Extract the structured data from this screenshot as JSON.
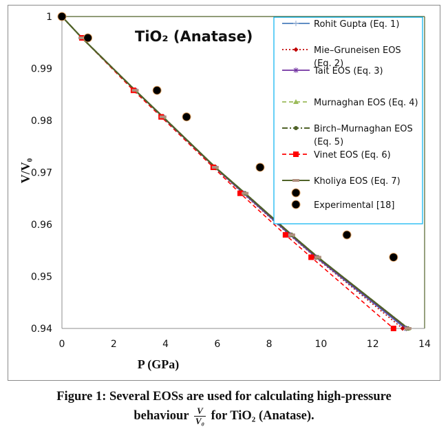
{
  "chart_data": {
    "type": "line",
    "title": "TiO₂ (Anatase)",
    "xlabel": "P (GPa)",
    "ylabel": "V/V₀",
    "xlim": [
      0,
      14
    ],
    "ylim": [
      0.94,
      1.0
    ],
    "xticks": [
      "0",
      "2",
      "4",
      "6",
      "8",
      "10",
      "12",
      "14"
    ],
    "xtick_values": [
      0,
      2,
      4,
      6,
      8,
      10,
      12,
      14
    ],
    "yticks": [
      "0.94",
      "0.95",
      "0.96",
      "0.97",
      "0.98",
      "0.99",
      "1"
    ],
    "ytick_values": [
      0.94,
      0.95,
      0.96,
      0.97,
      0.98,
      0.99,
      1.0
    ],
    "grid": false,
    "legend_position": "top-right",
    "y_common": [
      1.0,
      0.9959,
      0.9858,
      0.9807,
      0.971,
      0.966,
      0.958,
      0.9537,
      0.94
    ],
    "series": [
      {
        "name": "Rohit Gupta (Eq. 1)",
        "color": "#4a7ebb",
        "dash": "solid",
        "marker": "plus",
        "x": [
          0,
          0.77,
          2.82,
          3.88,
          5.9,
          7.0,
          8.8,
          9.8,
          13.25
        ],
        "y": [
          1.0,
          0.9959,
          0.9858,
          0.9807,
          0.971,
          0.966,
          0.958,
          0.9537,
          0.94
        ]
      },
      {
        "name": "Mie–Gruneisen EOS (Eq. 2)",
        "color": "#c00000",
        "dash": "dot",
        "marker": "diamond",
        "x": [
          0,
          0.77,
          2.82,
          3.88,
          5.88,
          6.98,
          8.78,
          9.78,
          13.15
        ],
        "y": [
          1.0,
          0.9959,
          0.9858,
          0.9807,
          0.971,
          0.966,
          0.958,
          0.9537,
          0.94
        ]
      },
      {
        "name": "Tait EOS (Eq. 3)",
        "color": "#7030a0",
        "dash": "solid",
        "marker": "star",
        "x": [
          0,
          0.77,
          2.82,
          3.88,
          5.9,
          7.02,
          8.82,
          9.82,
          13.3
        ],
        "y": [
          1.0,
          0.9959,
          0.9858,
          0.9807,
          0.971,
          0.966,
          0.958,
          0.9537,
          0.94
        ]
      },
      {
        "name": "Murnaghan EOS (Eq. 4)",
        "color": "#9bbb59",
        "dash": "dash",
        "marker": "triangle",
        "x": [
          0,
          0.77,
          2.83,
          3.9,
          5.92,
          7.07,
          8.87,
          9.88,
          13.36
        ],
        "y": [
          1.0,
          0.9959,
          0.9858,
          0.9807,
          0.971,
          0.966,
          0.958,
          0.9537,
          0.94
        ]
      },
      {
        "name": "Birch–Murnaghan EOS (Eq. 5)",
        "color": "#4f6228",
        "dash": "dashdot",
        "marker": "circle",
        "x": [
          0,
          0.77,
          2.83,
          3.9,
          5.92,
          7.07,
          8.87,
          9.88,
          13.36
        ],
        "y": [
          1.0,
          0.9959,
          0.9858,
          0.9807,
          0.971,
          0.966,
          0.958,
          0.9537,
          0.94
        ]
      },
      {
        "name": "Vinet EOS (Eq. 6)",
        "color": "#ff0000",
        "dash": "dash",
        "marker": "square",
        "x": [
          0,
          0.77,
          2.76,
          3.83,
          5.84,
          6.88,
          8.63,
          9.62,
          12.8
        ],
        "y": [
          1.0,
          0.9959,
          0.9858,
          0.9807,
          0.971,
          0.966,
          0.958,
          0.9537,
          0.94
        ]
      },
      {
        "name": "Kholiya EOS (Eq. 7)",
        "color": "#4f6228",
        "dash": "solid",
        "marker": "bar",
        "x": [
          0,
          0.77,
          2.83,
          3.9,
          5.92,
          7.07,
          8.87,
          9.88,
          13.36
        ],
        "y": [
          1.0,
          0.9959,
          0.9858,
          0.9807,
          0.971,
          0.966,
          0.958,
          0.9537,
          0.94
        ]
      },
      {
        "name": "Experimental [18]",
        "color": "#000000",
        "dash": "none",
        "marker": "big-circle",
        "x": [
          0,
          1.0,
          3.67,
          4.81,
          7.65,
          9.11,
          11.0,
          12.8
        ],
        "y": [
          1.0,
          0.9959,
          0.9858,
          0.9807,
          0.971,
          0.966,
          0.958,
          0.9537
        ]
      }
    ]
  },
  "legend": {
    "items": [
      {
        "line1": "Rohit Gupta (Eq. 1)",
        "line2": ""
      },
      {
        "line1": "Mie–Gruneisen EOS",
        "line2": "(Eq. 2)"
      },
      {
        "line1": "Tait EOS (Eq. 3)",
        "line2": ""
      },
      {
        "line1": "Murnaghan EOS (Eq. 4)",
        "line2": ""
      },
      {
        "line1": "Birch–Murnaghan EOS",
        "line2": "(Eq. 5)"
      },
      {
        "line1": "Vinet EOS (Eq. 6)",
        "line2": ""
      },
      {
        "line1": "Kholiya EOS (Eq. 7)",
        "line2": ""
      },
      {
        "line1": "Experimental [18]",
        "line2": ""
      }
    ],
    "border_color": "#00b0f0"
  },
  "caption": {
    "line1": "Figure 1: Several EOSs are used for calculating high-pressure",
    "line2_prefix": "behaviour",
    "frac_num": "V",
    "frac_den": "V₀",
    "line2_suffix": "for TiO₂ (Anatase)."
  }
}
